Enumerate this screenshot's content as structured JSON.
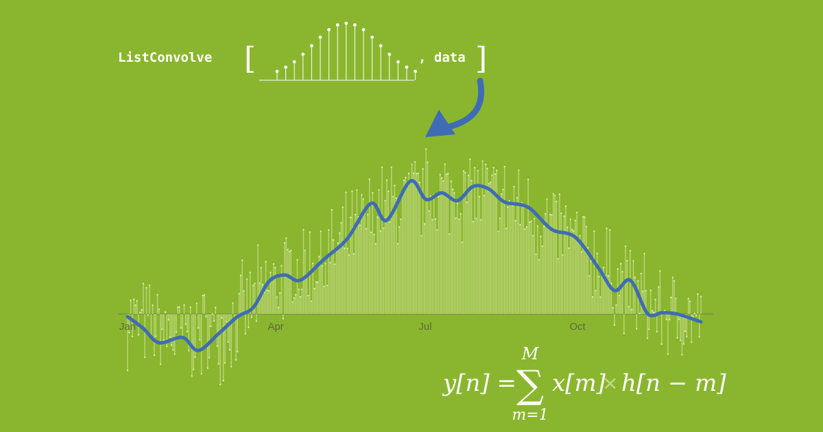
{
  "expression": {
    "function": "ListConvolve",
    "open_bracket": "[",
    "close_bracket": "]",
    "argument": ", data",
    "kernel": [
      0.1,
      0.18,
      0.28,
      0.42,
      0.58,
      0.74,
      0.88,
      0.97,
      1.0,
      0.97,
      0.88,
      0.74,
      0.58,
      0.42,
      0.28,
      0.18,
      0.1
    ]
  },
  "formula": {
    "lhs": "y[n] =",
    "sum": "∑",
    "upper": "M",
    "lower": "m=1",
    "term_x": "x[m]",
    "times": "×",
    "term_h": "h[n − m]"
  },
  "colors": {
    "background": "#8ab62f",
    "bars": "#c4dc86",
    "smoothed": "#3f6cb5",
    "axis": "#6b7b45",
    "text": "#ffffff",
    "arrow": "#3f6cb5"
  },
  "chart_data": {
    "type": "bar",
    "x_ticks": [
      "Jan",
      "Apr",
      "Jul",
      "Oct"
    ],
    "ylim": [
      -4.5,
      13.5
    ],
    "xlim": [
      0,
      365
    ],
    "baseline": 0,
    "smoothed_series": {
      "x": [
        0,
        10,
        20,
        35,
        45,
        58,
        70,
        80,
        90,
        100,
        110,
        125,
        140,
        155,
        165,
        180,
        190,
        200,
        210,
        220,
        230,
        240,
        255,
        270,
        285,
        300,
        310,
        320,
        330,
        335,
        340,
        350,
        365
      ],
      "y": [
        -0.2,
        -1.1,
        -2.2,
        -1.8,
        -2.8,
        -1.5,
        -0.2,
        0.5,
        2.5,
        3.0,
        2.6,
        4.2,
        5.8,
        8.5,
        7.2,
        10.2,
        8.8,
        9.3,
        8.7,
        9.8,
        9.6,
        8.6,
        8.2,
        6.5,
        5.9,
        3.5,
        1.8,
        2.6,
        0.2,
        -0.1,
        0.1,
        0.0,
        -0.6
      ]
    },
    "bar_amplitude": [
      {
        "x": 0,
        "y": -0.3
      },
      {
        "x": 30,
        "y": -2.0
      },
      {
        "x": 60,
        "y": -1.4
      },
      {
        "x": 95,
        "y": 2.6
      },
      {
        "x": 130,
        "y": 4.5
      },
      {
        "x": 160,
        "y": 8.0
      },
      {
        "x": 190,
        "y": 9.2
      },
      {
        "x": 220,
        "y": 9.4
      },
      {
        "x": 250,
        "y": 8.1
      },
      {
        "x": 280,
        "y": 6.0
      },
      {
        "x": 310,
        "y": 2.8
      },
      {
        "x": 340,
        "y": 0.0
      },
      {
        "x": 365,
        "y": -0.6
      }
    ]
  }
}
